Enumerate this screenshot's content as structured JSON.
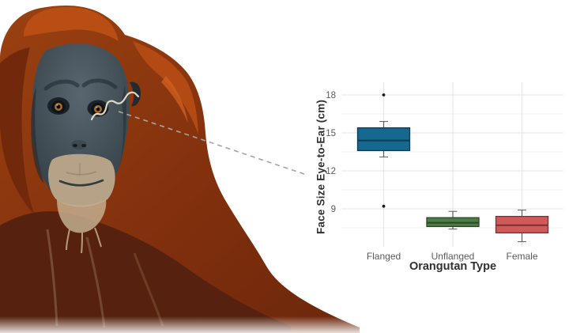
{
  "figure": {
    "background_color": "#ffffff",
    "photo": {
      "subject_icon": "orangutan-portrait-photo",
      "annotations": {
        "squiggle_icon": "eye-to-ear-measurement-mark",
        "connector_icon": "dashed-connector-line",
        "connector_color": "#a7a5a0"
      }
    }
  },
  "chart_data": {
    "type": "box",
    "title": "",
    "xlabel": "Orangutan Type",
    "ylabel": "Face Size Eye-to-Ear (cm)",
    "categories": [
      "Flanged",
      "Unflanged",
      "Female"
    ],
    "series": [
      {
        "name": "Flanged",
        "fill": "#15688e",
        "border": "#0b3c55",
        "min": 13.1,
        "q1": 13.6,
        "median": 14.4,
        "q3": 15.4,
        "max": 15.9,
        "outliers": [
          18.0,
          9.2
        ]
      },
      {
        "name": "Unflanged",
        "fill": "#4d7d45",
        "border": "#2b4725",
        "min": 7.4,
        "q1": 7.6,
        "median": 7.9,
        "q3": 8.3,
        "max": 8.8,
        "outliers": []
      },
      {
        "name": "Female",
        "fill": "#d05a5a",
        "border": "#7c2f2f",
        "min": 6.4,
        "q1": 7.1,
        "median": 7.7,
        "q3": 8.4,
        "max": 8.9,
        "outliers": []
      }
    ],
    "yticks": [
      9,
      12,
      15,
      18
    ],
    "yminor": [
      7.5,
      10.5,
      13.5,
      16.5
    ],
    "ylim": [
      6,
      19
    ],
    "grid": "major+minor, light gray on white",
    "legend": "none",
    "grid_major_color": "#e4e4e4",
    "grid_minor_color": "#f2f2f2",
    "whisker_color": "#5b5b5b",
    "outlier_color": "#1a1a1a",
    "tick_label_color": "#5a5a5a",
    "axis_title_color": "#303030"
  }
}
